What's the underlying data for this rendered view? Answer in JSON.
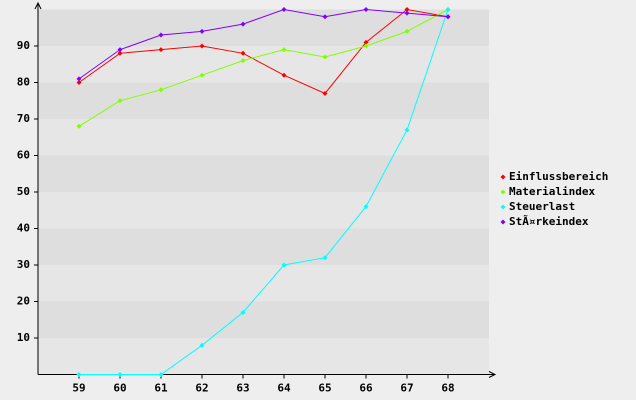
{
  "chart_data": {
    "type": "line",
    "x": [
      59,
      60,
      61,
      62,
      63,
      64,
      65,
      66,
      67,
      68
    ],
    "xlim": [
      58,
      69
    ],
    "xticks": [
      59,
      60,
      61,
      62,
      63,
      64,
      65,
      66,
      67,
      68
    ],
    "ylim": [
      0,
      100
    ],
    "yticks": [
      10,
      20,
      30,
      40,
      50,
      60,
      70,
      80,
      90
    ],
    "grid": true,
    "legend": "right",
    "series": [
      {
        "name": "Einflussbereich",
        "color": "#ff0000",
        "values": [
          80,
          88,
          89,
          90,
          88,
          82,
          77,
          91,
          100,
          98
        ]
      },
      {
        "name": "Materialindex",
        "color": "#80ff00",
        "values": [
          68,
          75,
          78,
          82,
          86,
          89,
          87,
          90,
          94,
          100
        ]
      },
      {
        "name": "Steuerlast",
        "color": "#00ffff",
        "values": [
          0,
          0,
          0,
          8,
          17,
          30,
          32,
          46,
          67,
          100
        ]
      },
      {
        "name": "StÃ¤rkeindex",
        "color": "#8000ff",
        "values": [
          81,
          89,
          93,
          94,
          96,
          100,
          98,
          100,
          99,
          98
        ]
      }
    ]
  }
}
